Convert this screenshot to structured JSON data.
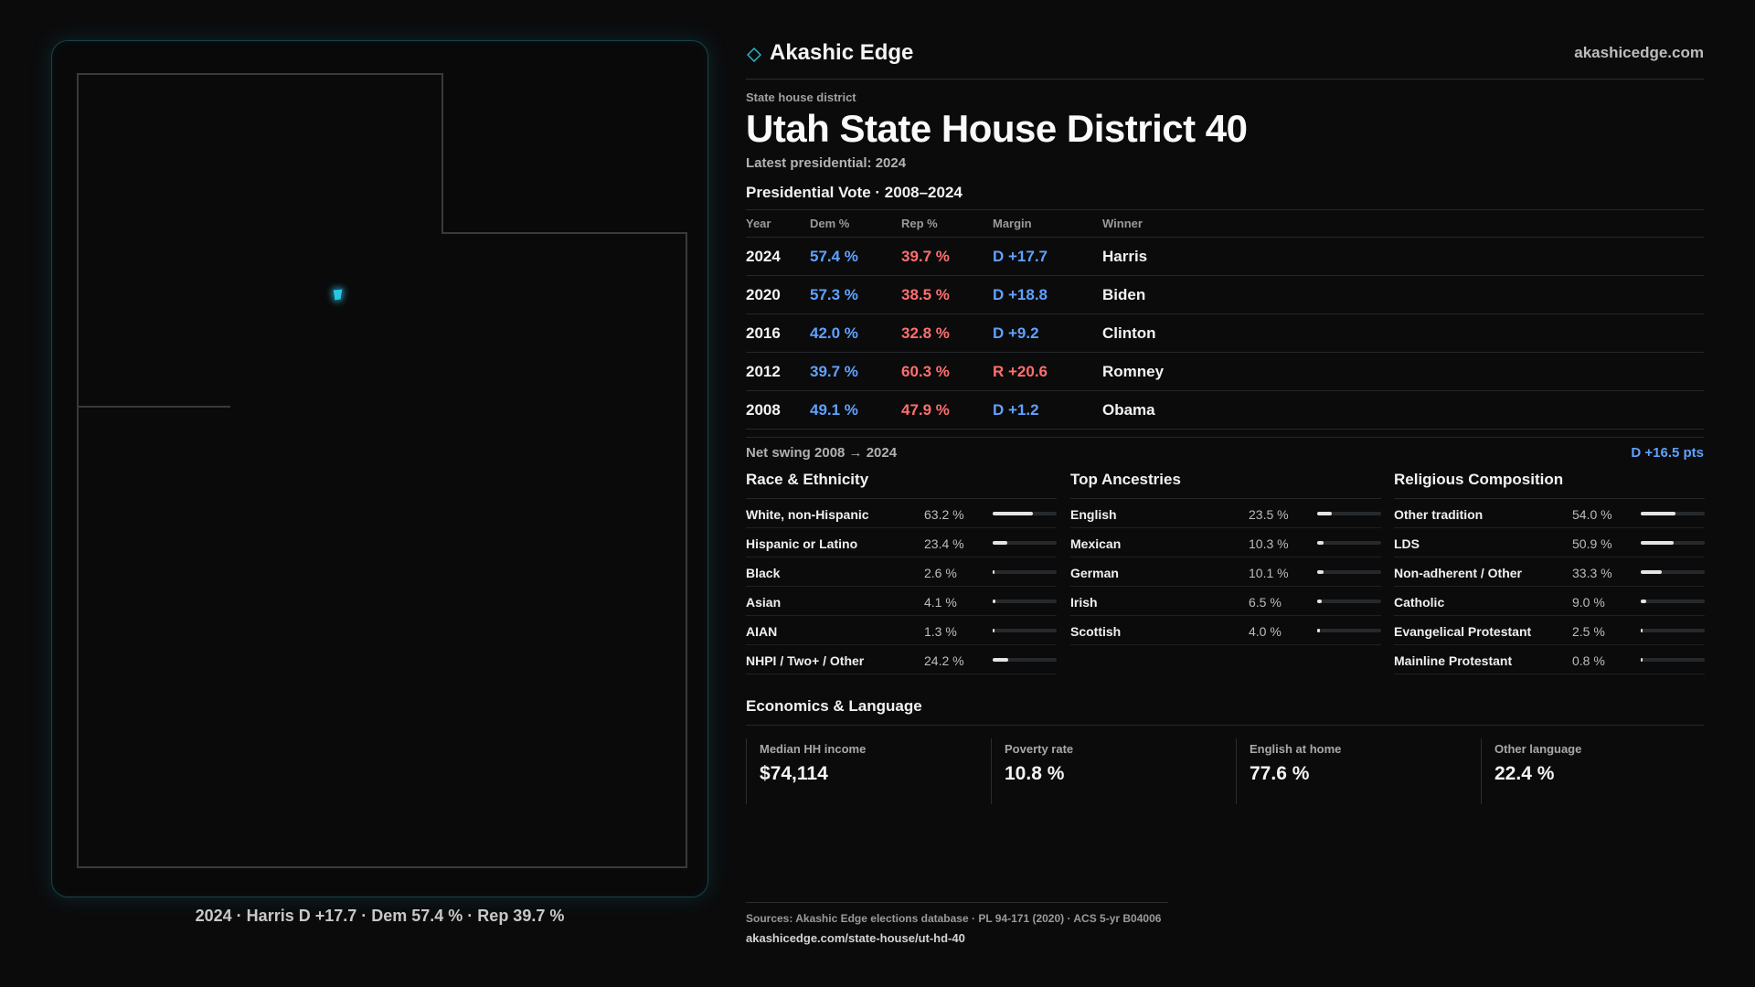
{
  "brand": {
    "name": "Akashic Edge",
    "url": "akashicedge.com"
  },
  "district": {
    "kind": "State house district",
    "title": "Utah State House District 40",
    "latest": "Latest presidential: 2024"
  },
  "votes": {
    "heading": "Presidential Vote · 2008–2024",
    "columns": [
      "Year",
      "Dem %",
      "Rep %",
      "Margin",
      "Winner"
    ],
    "rows": [
      {
        "year": "2024",
        "dem": "57.4 %",
        "rep": "39.7 %",
        "margin": "D +17.7",
        "party": "d",
        "winner": "Harris"
      },
      {
        "year": "2020",
        "dem": "57.3 %",
        "rep": "38.5 %",
        "margin": "D +18.8",
        "party": "d",
        "winner": "Biden"
      },
      {
        "year": "2016",
        "dem": "42.0 %",
        "rep": "32.8 %",
        "margin": "D +9.2",
        "party": "d",
        "winner": "Clinton"
      },
      {
        "year": "2012",
        "dem": "39.7 %",
        "rep": "60.3 %",
        "margin": "R +20.6",
        "party": "r",
        "winner": "Romney"
      },
      {
        "year": "2008",
        "dem": "49.1 %",
        "rep": "47.9 %",
        "margin": "D +1.2",
        "party": "d",
        "winner": "Obama"
      }
    ],
    "swing_label": "Net swing 2008 → 2024",
    "swing_value": "D +16.5 pts"
  },
  "race": {
    "heading": "Race & Ethnicity",
    "items": [
      {
        "label": "White, non-Hispanic",
        "pct": "63.2 %",
        "value": 63.2
      },
      {
        "label": "Hispanic or Latino",
        "pct": "23.4 %",
        "value": 23.4
      },
      {
        "label": "Black",
        "pct": "2.6 %",
        "value": 2.6
      },
      {
        "label": "Asian",
        "pct": "4.1 %",
        "value": 4.1
      },
      {
        "label": "AIAN",
        "pct": "1.3 %",
        "value": 1.3
      },
      {
        "label": "NHPI / Two+ / Other",
        "pct": "24.2 %",
        "value": 24.2
      }
    ]
  },
  "ancestry": {
    "heading": "Top Ancestries",
    "items": [
      {
        "label": "English",
        "pct": "23.5 %",
        "value": 23.5
      },
      {
        "label": "Mexican",
        "pct": "10.3 %",
        "value": 10.3
      },
      {
        "label": "German",
        "pct": "10.1 %",
        "value": 10.1
      },
      {
        "label": "Irish",
        "pct": "6.5 %",
        "value": 6.5
      },
      {
        "label": "Scottish",
        "pct": "4.0 %",
        "value": 4.0
      }
    ]
  },
  "religion": {
    "heading": "Religious Composition",
    "items": [
      {
        "label": "Other tradition",
        "pct": "54.0 %",
        "value": 54.0
      },
      {
        "label": "LDS",
        "pct": "50.9 %",
        "value": 50.9
      },
      {
        "label": "Non-adherent / Other",
        "pct": "33.3 %",
        "value": 33.3
      },
      {
        "label": "Catholic",
        "pct": "9.0 %",
        "value": 9.0
      },
      {
        "label": "Evangelical Protestant",
        "pct": "2.5 %",
        "value": 2.5
      },
      {
        "label": "Mainline Protestant",
        "pct": "0.8 %",
        "value": 0.8
      }
    ]
  },
  "economics": {
    "heading": "Economics & Language",
    "stats": [
      {
        "label": "Median HH income",
        "value": "$74,114"
      },
      {
        "label": "Poverty rate",
        "value": "10.8 %"
      },
      {
        "label": "English at home",
        "value": "77.6 %"
      },
      {
        "label": "Other language",
        "value": "22.4 %"
      }
    ]
  },
  "map": {
    "caption": "2024 · Harris D +17.7 · Dem 57.4 % · Rep 39.7 %"
  },
  "footer": {
    "sources": "Sources: Akashic Edge elections database · PL 94-171 (2020) · ACS 5-yr B04006",
    "page_url": "akashicedge.com/state-house/ut-hd-40"
  },
  "colors": {
    "dem": "#5fa2ff",
    "rep": "#ff6f6f",
    "accent": "#2bbbd6"
  }
}
